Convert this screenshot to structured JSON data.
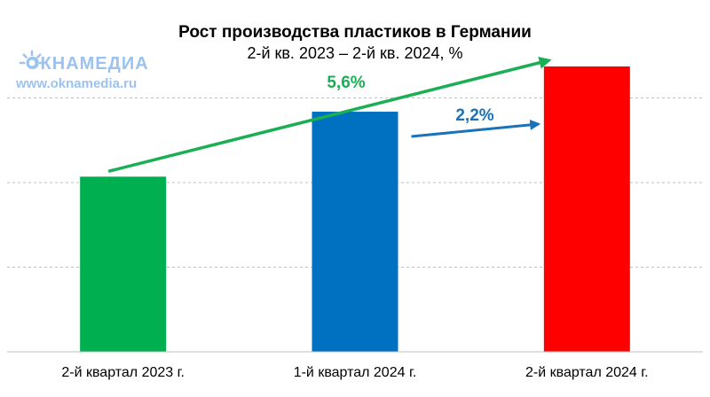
{
  "chart_data": {
    "type": "bar",
    "title": "Рост производства пластиков в Германии",
    "subtitle": "2-й кв. 2023 – 2-й кв. 2024, %",
    "categories": [
      "2-й квартал 2023 г.",
      "1-й квартал 2024 г.",
      "2-й квартал 2024 г."
    ],
    "values": [
      100,
      103.3,
      105.6
    ],
    "bar_colors": [
      "#00b050",
      "#0070c0",
      "#ff0000"
    ],
    "ylim": [
      91.1,
      108.3
    ],
    "grid": true,
    "annotations": [
      {
        "label": "5,6%",
        "from": 0,
        "to": 2,
        "color": "#1aaf54"
      },
      {
        "label": "2,2%",
        "from": 1,
        "to": 2,
        "color": "#1a72b8"
      }
    ]
  },
  "watermark": {
    "brand": "ОКНАМЕДИА",
    "url": "www.oknamedia.ru",
    "color": "#9cc3ef"
  }
}
